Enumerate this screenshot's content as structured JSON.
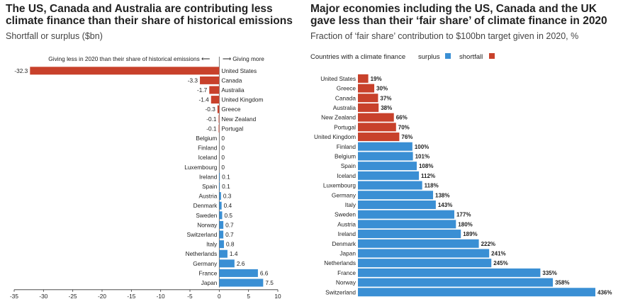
{
  "colors": {
    "surplus": "#3a8fd4",
    "shortfall": "#c8412b"
  },
  "left": {
    "title": "The US, Canada and Australia are contributing less climate finance than their share of historical emissions",
    "subtitle": "Shortfall or surplus ($bn)",
    "note_less": "Giving less in 2020 than their share of historical emissions ⟵",
    "note_more": "⟶ Giving more"
  },
  "right": {
    "title": "Major economies including the US, Canada and the UK gave less than their ‘fair share’ of climate finance in 2020",
    "subtitle": "Fraction of ‘fair share’ contribution to $100bn target given in 2020, %",
    "legend_label": "Countries with a climate finance",
    "legend_surplus": "surplus",
    "legend_shortfall": "shortfall"
  },
  "chart_data": [
    {
      "type": "bar",
      "orientation": "horizontal",
      "title": "The US, Canada and Australia are contributing less climate finance than their share of historical emissions",
      "subtitle": "Shortfall or surplus ($bn)",
      "categories": [
        "United States",
        "Canada",
        "Australia",
        "United Kingdom",
        "Greece",
        "New Zealand",
        "Portugal",
        "Belgium",
        "Finland",
        "Iceland",
        "Luxembourg",
        "Ireland",
        "Spain",
        "Austria",
        "Denmark",
        "Sweden",
        "Norway",
        "Switzerland",
        "Italy",
        "Netherlands",
        "Germany",
        "France",
        "Japan"
      ],
      "values": [
        -32.3,
        -3.3,
        -1.7,
        -1.4,
        -0.3,
        -0.1,
        -0.1,
        0,
        0,
        0,
        0,
        0.1,
        0.1,
        0.3,
        0.4,
        0.5,
        0.7,
        0.7,
        0.8,
        1.4,
        2.6,
        6.6,
        7.5
      ],
      "value_labels": [
        "-32.3",
        "-3.3",
        "-1.7",
        "-1.4",
        "-0.3",
        "-0.1",
        "-0.1",
        "0",
        "0",
        "0",
        "0",
        "0.1",
        "0.1",
        "0.3",
        "0.4",
        "0.5",
        "0.7",
        "0.7",
        "0.8",
        "1.4",
        "2.6",
        "6.6",
        "7.5"
      ],
      "xlim": [
        -35,
        10
      ],
      "xticks": [
        -35,
        -30,
        -25,
        -20,
        -15,
        -10,
        -5,
        0,
        5,
        10
      ],
      "xtick_labels": [
        "-35",
        "-30",
        "-25",
        "-20",
        "-15",
        "-10",
        "-5",
        "0",
        "5",
        "10"
      ],
      "grid": false
    },
    {
      "type": "bar",
      "orientation": "horizontal",
      "title": "Major economies including the US, Canada and the UK gave less than their ‘fair share’ of climate finance in 2020",
      "subtitle": "Fraction of ‘fair share’ contribution to $100bn target given in 2020, %",
      "categories": [
        "United States",
        "Greece",
        "Canada",
        "Australia",
        "New Zealand",
        "Portugal",
        "United Kingdom",
        "Finland",
        "Belgium",
        "Spain",
        "Iceland",
        "Luxembourg",
        "Germany",
        "Italy",
        "Sweden",
        "Austria",
        "Ireland",
        "Denmark",
        "Japan",
        "Netherlands",
        "France",
        "Norway",
        "Switzerland"
      ],
      "values": [
        19,
        30,
        37,
        38,
        66,
        70,
        76,
        100,
        101,
        108,
        112,
        118,
        138,
        143,
        177,
        180,
        189,
        222,
        241,
        245,
        335,
        358,
        436
      ],
      "value_labels": [
        "19%",
        "30%",
        "37%",
        "38%",
        "66%",
        "70%",
        "76%",
        "100%",
        "101%",
        "108%",
        "112%",
        "118%",
        "138%",
        "143%",
        "177%",
        "180%",
        "189%",
        "222%",
        "241%",
        "245%",
        "335%",
        "358%",
        "436%"
      ],
      "legend": [
        "surplus",
        "shortfall"
      ],
      "legend_position": "top-left",
      "grid": false
    }
  ]
}
